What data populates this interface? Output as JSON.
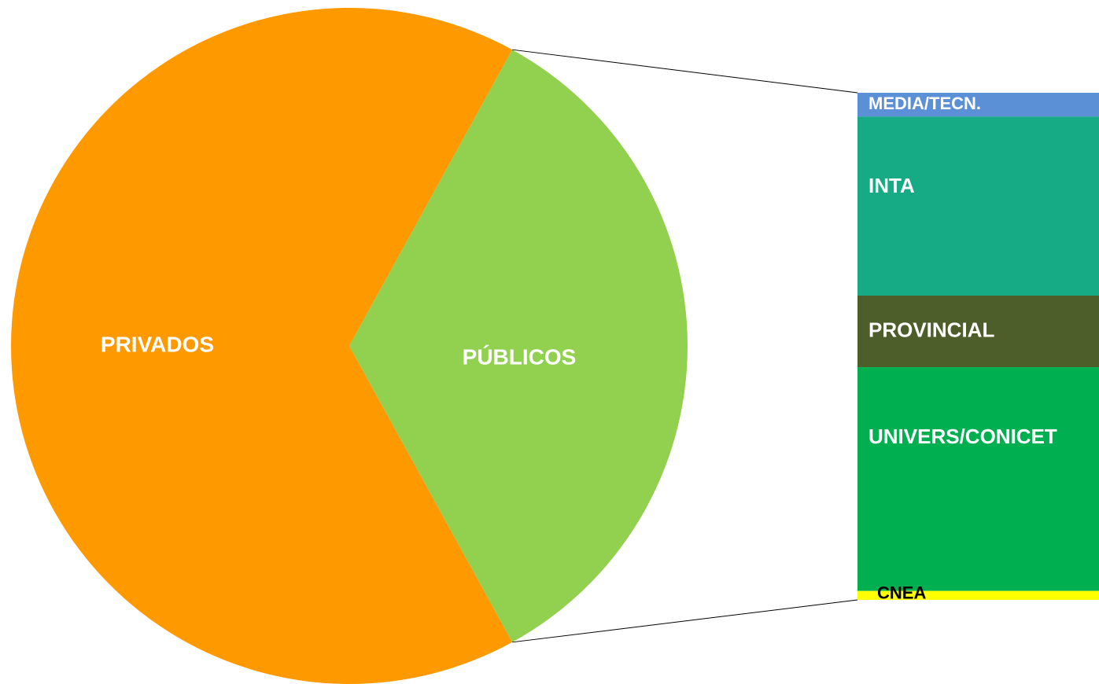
{
  "chart_data": {
    "type": "bar_of_pie",
    "categories": [
      "PRIVADOS",
      "PÚBLICOS"
    ],
    "values": [
      66,
      34
    ],
    "colors": [
      "#ff9900",
      "#92d050"
    ],
    "breakdown": {
      "categories": [
        "MEDIA/TECN.",
        "INTA",
        "PROVINCIAL",
        "UNIVERS/CONICET",
        "CNEA"
      ],
      "values": [
        1.6,
        12,
        4.8,
        15,
        0.6
      ],
      "colors": [
        "#5b8fd6",
        "#16ab85",
        "#4e5e2b",
        "#00b050",
        "#ffff00"
      ]
    }
  }
}
